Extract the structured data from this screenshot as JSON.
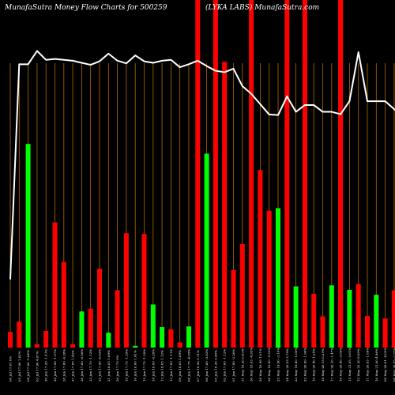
{
  "chart_data": {
    "type": "bar",
    "title_left": "MunafaSutra  Money Flow  Charts for 500259",
    "title_right": "(LYKA LABS) MunafaSutra.com",
    "xlabel": "",
    "ylabel": "",
    "grid": true,
    "colors": {
      "up": "#00ff00",
      "down": "#ff0000",
      "line": "#ffffff",
      "grid": "#b06a00",
      "background": "#000000"
    },
    "ylim": [
      0,
      100
    ],
    "categories": [
      "06 Jul 17.61 0%",
      "05 Jul 17.90 1.62%",
      "04 Jul 17.60 -1.66%",
      "03 Jul 17.90 4.07%",
      "30 Jun 17.20 -1.41%",
      "29 Jun 17.45 -1.97%",
      "28 Jun 17.80 -0.28%",
      "27 Jun 17.85 1.42%",
      "26 Jun 17.60 -0.56%",
      "23 Jun 17.70 -1.12%",
      "22 Jun 17.90 -0.83%",
      "21 Jun 18.05 1.69%",
      "20 Jun 17.75 0%",
      "19 Jun 17.75 -1.39%",
      "16 Jun 18.00 1.41%",
      "15 Jun 17.75 -1.39%",
      "14 Jun 18.00 -0.28%",
      "13 Jun 18.05 1.12%",
      "12 Jun 17.85 -1.11%",
      "09 Jun 18.05 1.69%",
      "08 Jun 17.75 -4.05%",
      "07 Jun 18.50 5.11%",
      "06 Jun 17.60 -3.83%",
      "05 Jun 18.30 3.98%",
      "02 Jun 17.60 -1.12%",
      "01 Jun 17.80 -2.20%",
      "31 May 18.20 0.83%",
      "30 May 18.05 -4.95%",
      "29 May 18.99 1.01%",
      "26 May 18.80 -5.52%",
      "25 May 19.90 -3.16%",
      "24 May 20.55 3.79%",
      "23 May 19.80 -1.00%",
      "22 May 20.00 -1.96%",
      "19 May 20.40 1.24%",
      "18 May 20.15 0.25%",
      "17 May 20.10 -1.47%",
      "16 May 20.40 -3.09%",
      "15 May 21.05 -5.61%",
      "12 May 22.30 8.00%",
      "11 May 20.65 -1.69%",
      "10 May 21.00 4.96%",
      "09 May 20.01 -4.02%",
      "08 May 20.85 -2.57%",
      "05 May 21.40 -2.50%"
    ],
    "series": [
      {
        "values": [
          4.5,
          7.5,
          58.6,
          1.0,
          4.8,
          36.0,
          24.6,
          1.0,
          10.4,
          11.2,
          22.7,
          4.3,
          16.5,
          32.9,
          0.5,
          32.7,
          12.4,
          5.9,
          5.3,
          1.5,
          6.1,
          100.0,
          55.8,
          100.0,
          82.2,
          22.3,
          29.8,
          100.0,
          51.1,
          39.4,
          40.1,
          100.0,
          17.6,
          100.0,
          15.5,
          9.0,
          17.9,
          100.0,
          16.6,
          18.3,
          9.1,
          15.2,
          8.4,
          16.5,
          49.9
        ],
        "direction": [
          "down",
          "down",
          "up",
          "down",
          "down",
          "down",
          "down",
          "down",
          "up",
          "down",
          "down",
          "up",
          "down",
          "down",
          "up",
          "down",
          "up",
          "up",
          "down",
          "down",
          "up",
          "down",
          "up",
          "down",
          "down",
          "down",
          "down",
          "down",
          "down",
          "down",
          "up",
          "down",
          "up",
          "down",
          "down",
          "down",
          "up",
          "down",
          "up",
          "down",
          "down",
          "up",
          "down",
          "down",
          "down"
        ]
      },
      {
        "type": "line",
        "values": [
          23.1,
          95.9,
          95.9,
          100.4,
          97.4,
          97.7,
          97.4,
          97.1,
          96.4,
          95.7,
          96.9,
          99.5,
          97.1,
          96.2,
          98.9,
          96.9,
          96.4,
          97.1,
          97.4,
          94.9,
          95.9,
          97.1,
          95.3,
          93.7,
          93.2,
          94.4,
          88.5,
          85.9,
          82.4,
          78.9,
          78.7,
          85.0,
          79.8,
          82.1,
          82.1,
          79.8,
          79.8,
          79.0,
          83.4,
          100.0,
          83.4,
          83.4,
          83.4,
          80.7,
          78.2
        ]
      }
    ]
  }
}
